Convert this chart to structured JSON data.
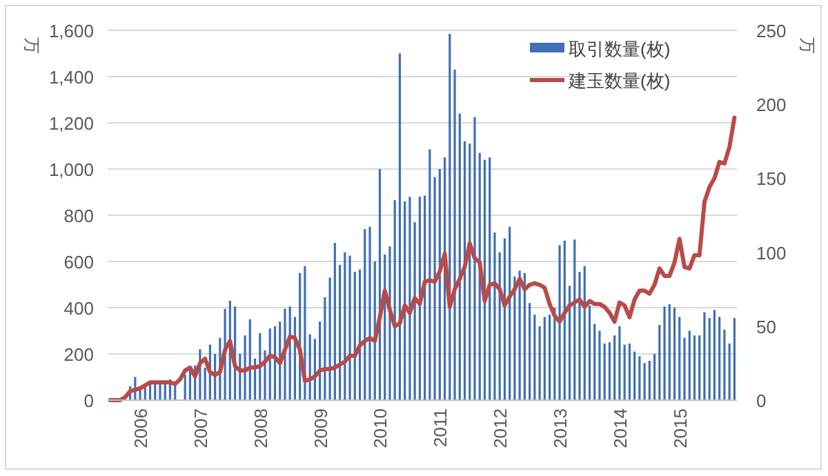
{
  "chart_data": {
    "type": "bar",
    "ylabel": "万",
    "y2label": "万",
    "categories": [
      null,
      null,
      null,
      null,
      null,
      null,
      "2006",
      null,
      null,
      null,
      null,
      null,
      null,
      null,
      null,
      null,
      null,
      null,
      "2007",
      null,
      null,
      null,
      null,
      null,
      null,
      null,
      null,
      null,
      null,
      null,
      "2008",
      null,
      null,
      null,
      null,
      null,
      null,
      null,
      null,
      null,
      null,
      null,
      "2009",
      null,
      null,
      null,
      null,
      null,
      null,
      null,
      null,
      null,
      null,
      null,
      "2010",
      null,
      null,
      null,
      null,
      null,
      null,
      null,
      null,
      null,
      null,
      null,
      "2011",
      null,
      null,
      null,
      null,
      null,
      null,
      null,
      null,
      null,
      null,
      null,
      "2012",
      null,
      null,
      null,
      null,
      null,
      null,
      null,
      null,
      null,
      null,
      null,
      "2013",
      null,
      null,
      null,
      null,
      null,
      null,
      null,
      null,
      null,
      null,
      null,
      "2014",
      null,
      null,
      null,
      null,
      null,
      null,
      null,
      null,
      null,
      null,
      null,
      "2015",
      null,
      null,
      null,
      null,
      null,
      null,
      null,
      null,
      null,
      null,
      null
    ],
    "series": [
      {
        "name": "取引数量(枚)",
        "color": "#3f6fb5",
        "values": [
          null,
          null,
          null,
          null,
          60,
          100,
          50,
          60,
          70,
          80,
          80,
          85,
          90,
          80,
          null,
          110,
          130,
          150,
          220,
          140,
          240,
          200,
          270,
          395,
          430,
          405,
          200,
          280,
          350,
          180,
          290,
          215,
          310,
          320,
          340,
          395,
          405,
          360,
          550,
          580,
          285,
          265,
          340,
          445,
          530,
          680,
          585,
          640,
          625,
          555,
          565,
          740,
          750,
          600,
          1000,
          630,
          665,
          865,
          1500,
          860,
          880,
          770,
          880,
          885,
          1085,
          965,
          1000,
          1050,
          1585,
          1430,
          1240,
          1120,
          1110,
          1225,
          1070,
          1040,
          1050,
          725,
          640,
          700,
          750,
          535,
          560,
          550,
          420,
          370,
          320,
          360,
          370,
          400,
          670,
          690,
          495,
          695,
          555,
          580,
          410,
          330,
          300,
          245,
          250,
          280,
          320,
          240,
          245,
          210,
          190,
          160,
          170,
          200,
          325,
          405,
          415,
          400,
          360,
          270,
          300,
          280,
          280,
          380,
          355,
          390,
          360,
          305,
          245,
          355
        ]
      },
      {
        "name": "建玉数量(枚)",
        "type": "line",
        "axis": "y2",
        "color": "#b94a48",
        "values": [
          0,
          0,
          0,
          2,
          6,
          7,
          8,
          10,
          12,
          12,
          12,
          12,
          12,
          11,
          14,
          20,
          22,
          16,
          25,
          28,
          19,
          17,
          19,
          34,
          40,
          23,
          20,
          20,
          22,
          22,
          23,
          26,
          30,
          29,
          25,
          34,
          43,
          42,
          34,
          13,
          14,
          16,
          20,
          21,
          21,
          22,
          24,
          26,
          30,
          30,
          37,
          40,
          42,
          40,
          56,
          74,
          61,
          50,
          52,
          64,
          59,
          69,
          65,
          80,
          81,
          80,
          87,
          99,
          63,
          75,
          82,
          90,
          106,
          96,
          93,
          67,
          78,
          79,
          75,
          64,
          70,
          75,
          82,
          75,
          78,
          79,
          78,
          76,
          65,
          57,
          53,
          59,
          64,
          66,
          68,
          63,
          67,
          65,
          65,
          63,
          59,
          53,
          66,
          64,
          56,
          68,
          74,
          74,
          72,
          78,
          89,
          84,
          84,
          93,
          109,
          90,
          89,
          98,
          98,
          134,
          144,
          150,
          161,
          160,
          171,
          191
        ]
      }
    ],
    "ylim": [
      0,
      1600
    ],
    "yticks": [
      0,
      200,
      400,
      600,
      800,
      {
        "value": 1000,
        "label": "1,000"
      },
      {
        "value": 1200,
        "label": "1,200"
      },
      {
        "value": 1400,
        "label": "1,400"
      },
      {
        "value": 1600,
        "label": "1,600"
      }
    ],
    "y2lim": [
      0,
      250
    ],
    "y2ticks": [
      0,
      50,
      100,
      150,
      200,
      250
    ],
    "grid": "y",
    "legend": "top right"
  }
}
